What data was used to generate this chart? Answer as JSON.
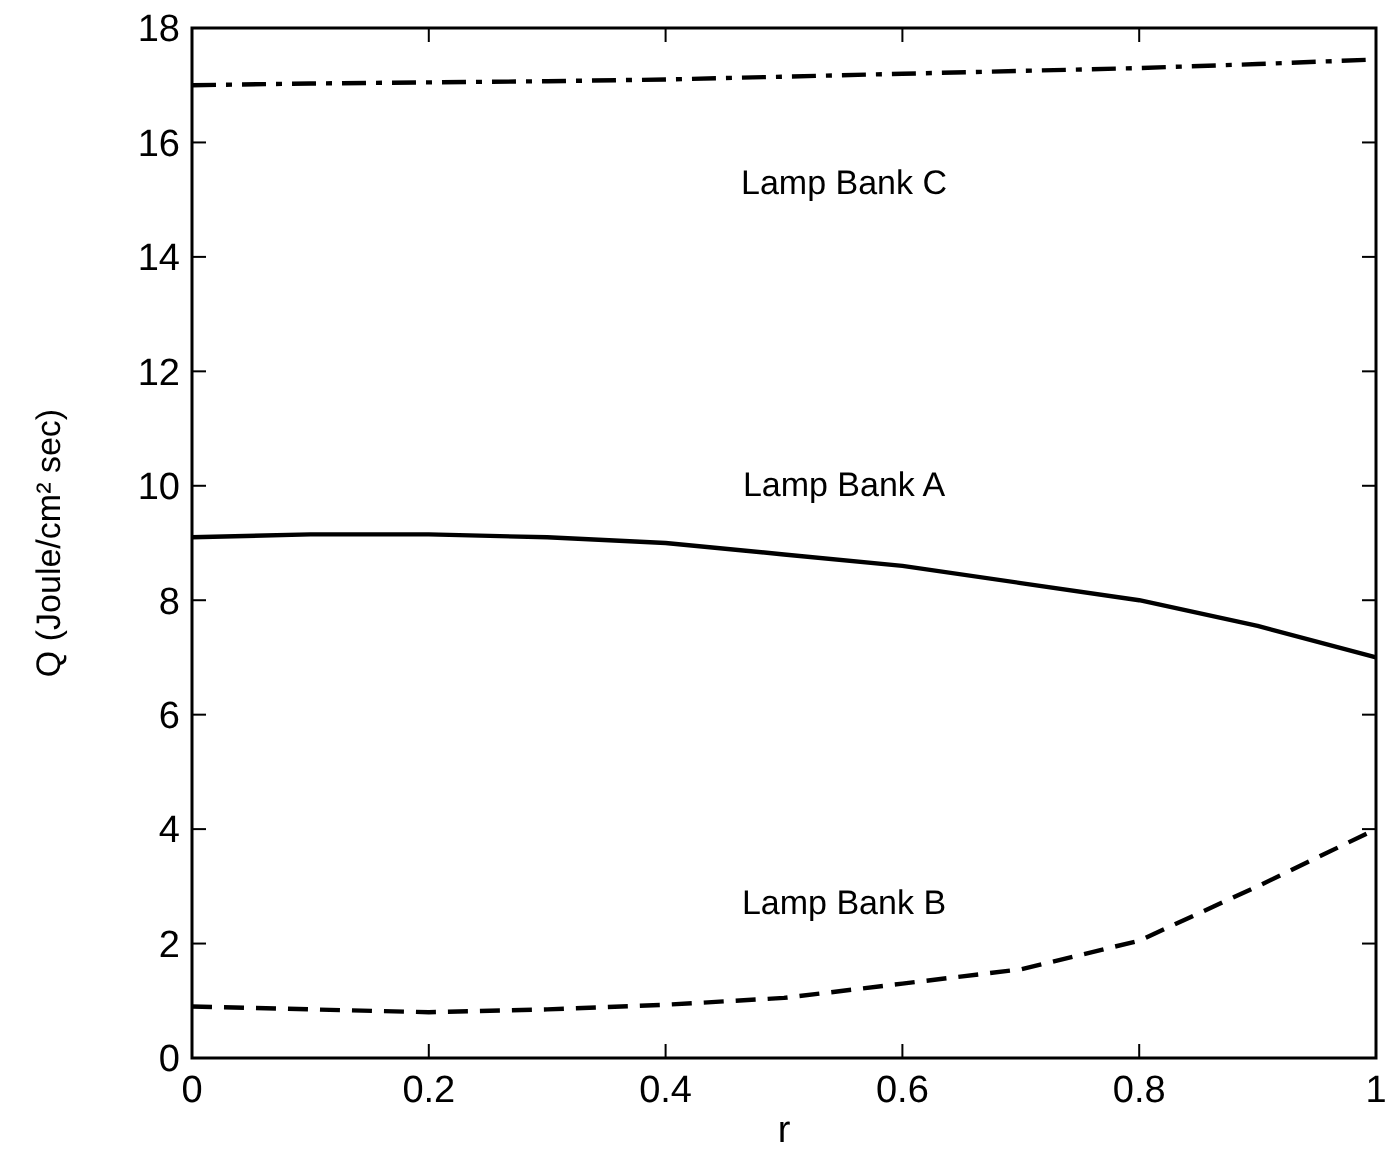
{
  "chart_data": {
    "type": "line",
    "xlabel": "r",
    "ylabel": "Q (Joule/cm² sec)",
    "xlim": [
      0,
      1
    ],
    "ylim": [
      0,
      18
    ],
    "xticks": [
      0,
      0.2,
      0.4,
      0.6,
      0.8,
      1
    ],
    "yticks": [
      0,
      2,
      4,
      6,
      8,
      10,
      12,
      14,
      16,
      18
    ],
    "grid": false,
    "marker": "none",
    "x": [
      0,
      0.1,
      0.2,
      0.3,
      0.4,
      0.5,
      0.6,
      0.7,
      0.8,
      0.9,
      1
    ],
    "series": [
      {
        "name": "Lamp Bank C",
        "color": "#000000",
        "line_style": "dashdot",
        "values": [
          17.0,
          17.03,
          17.05,
          17.07,
          17.1,
          17.15,
          17.2,
          17.25,
          17.3,
          17.37,
          17.45
        ]
      },
      {
        "name": "Lamp Bank A",
        "color": "#000000",
        "line_style": "solid",
        "values": [
          9.1,
          9.15,
          9.15,
          9.1,
          9.0,
          8.8,
          8.6,
          8.3,
          8.0,
          7.55,
          7.0
        ]
      },
      {
        "name": "Lamp Bank B",
        "color": "#000000",
        "line_style": "dashed",
        "values": [
          0.9,
          0.85,
          0.8,
          0.85,
          0.93,
          1.05,
          1.3,
          1.55,
          2.05,
          3.0,
          4.0
        ]
      }
    ]
  }
}
